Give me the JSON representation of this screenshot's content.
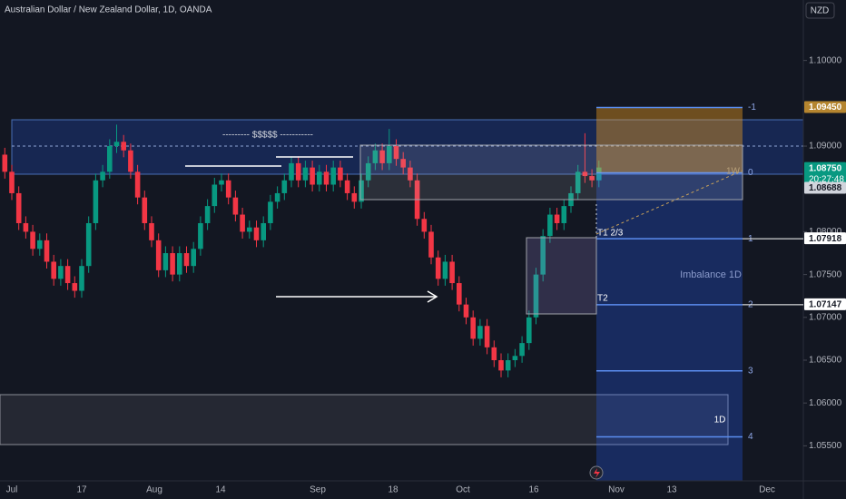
{
  "chart_data": {
    "type": "candlestick",
    "title": "Australian Dollar / New Zealand Dollar, 1D, OANDA",
    "currency": "NZD",
    "up_color": "#089981",
    "down_color": "#f23645",
    "x_labels": [
      "Jul",
      "17",
      "Aug",
      "14",
      "Sep",
      "18",
      "Oct",
      "16",
      "Nov",
      "13",
      "Dec"
    ],
    "open": [
      1.089,
      1.087,
      1.0845,
      1.081,
      1.08,
      1.078,
      1.079,
      1.0765,
      1.0745,
      1.076,
      1.074,
      1.0731,
      1.076,
      1.081,
      1.086,
      1.087,
      1.09,
      1.0905,
      1.0895,
      1.087,
      1.084,
      1.081,
      1.079,
      1.0755,
      1.0775,
      1.075,
      1.0775,
      1.076,
      1.078,
      1.081,
      1.083,
      1.0855,
      1.086,
      1.084,
      1.082,
      1.08,
      1.0805,
      1.079,
      1.081,
      1.0835,
      1.0845,
      1.086,
      1.088,
      1.086,
      1.0875,
      1.0855,
      1.087,
      1.0855,
      1.0875,
      1.086,
      1.0845,
      1.0835,
      1.086,
      1.088,
      1.0895,
      1.088,
      1.09,
      1.0885,
      1.0875,
      1.086,
      1.0815,
      1.08,
      1.077,
      1.0745,
      1.0765,
      1.074,
      1.0715,
      1.07,
      1.0675,
      1.069,
      1.0665,
      1.065,
      1.0638,
      1.065,
      1.0655,
      1.067,
      1.07,
      1.075,
      1.0795,
      1.082,
      1.081,
      1.083,
      1.0845,
      1.087,
      1.0865,
      1.086
    ],
    "high": [
      1.0898,
      1.0878,
      1.0853,
      1.0818,
      1.0808,
      1.0798,
      1.0798,
      1.0773,
      1.0768,
      1.0768,
      1.0748,
      1.0768,
      1.0818,
      1.0868,
      1.0878,
      1.0908,
      1.0925,
      1.0913,
      1.0903,
      1.0878,
      1.0848,
      1.0818,
      1.0798,
      1.0783,
      1.0783,
      1.0783,
      1.0783,
      1.0788,
      1.0818,
      1.0838,
      1.0863,
      1.0868,
      1.0868,
      1.0848,
      1.0828,
      1.0813,
      1.0813,
      1.0818,
      1.0843,
      1.0853,
      1.0868,
      1.0888,
      1.0888,
      1.0883,
      1.0883,
      1.0878,
      1.0878,
      1.0883,
      1.0883,
      1.0868,
      1.0853,
      1.0868,
      1.0888,
      1.0903,
      1.0903,
      1.092,
      1.0908,
      1.0893,
      1.0883,
      1.0868,
      1.0823,
      1.0808,
      1.0778,
      1.0773,
      1.0773,
      1.0748,
      1.0723,
      1.0708,
      1.0698,
      1.0698,
      1.0673,
      1.0658,
      1.0658,
      1.0663,
      1.0678,
      1.0708,
      1.0758,
      1.0803,
      1.0828,
      1.0828,
      1.0838,
      1.0853,
      1.0878,
      1.0915,
      1.0873,
      1.0883
    ],
    "low": [
      1.0862,
      1.0837,
      1.0802,
      1.0792,
      1.0772,
      1.0772,
      1.0757,
      1.0737,
      1.0737,
      1.0732,
      1.0723,
      1.0723,
      1.0752,
      1.0802,
      1.0852,
      1.0862,
      1.0892,
      1.0887,
      1.0862,
      1.0832,
      1.0802,
      1.0782,
      1.0747,
      1.0747,
      1.0742,
      1.0742,
      1.0752,
      1.0752,
      1.0772,
      1.0802,
      1.0822,
      1.0847,
      1.0832,
      1.0812,
      1.0792,
      1.0792,
      1.0782,
      1.0782,
      1.0802,
      1.0827,
      1.0837,
      1.0852,
      1.0852,
      1.0852,
      1.0847,
      1.0847,
      1.0847,
      1.0847,
      1.0852,
      1.0837,
      1.0827,
      1.0827,
      1.0852,
      1.0872,
      1.0872,
      1.0872,
      1.0877,
      1.0867,
      1.0852,
      1.0807,
      1.0792,
      1.0762,
      1.0737,
      1.0737,
      1.0732,
      1.0707,
      1.0692,
      1.0667,
      1.0667,
      1.0657,
      1.0642,
      1.063,
      1.063,
      1.0642,
      1.0647,
      1.0662,
      1.0692,
      1.0742,
      1.0787,
      1.0802,
      1.0802,
      1.0822,
      1.0837,
      1.0857,
      1.0852,
      1.0852
    ],
    "close": [
      1.087,
      1.0845,
      1.081,
      1.08,
      1.078,
      1.079,
      1.0765,
      1.0745,
      1.076,
      1.074,
      1.0731,
      1.076,
      1.081,
      1.086,
      1.087,
      1.09,
      1.0905,
      1.0895,
      1.087,
      1.084,
      1.081,
      1.079,
      1.0755,
      1.0775,
      1.075,
      1.0775,
      1.076,
      1.078,
      1.081,
      1.083,
      1.0855,
      1.086,
      1.084,
      1.082,
      1.08,
      1.0805,
      1.079,
      1.081,
      1.0835,
      1.0845,
      1.086,
      1.088,
      1.086,
      1.0875,
      1.0855,
      1.087,
      1.0855,
      1.0875,
      1.086,
      1.0845,
      1.0835,
      1.086,
      1.088,
      1.0895,
      1.088,
      1.09,
      1.0885,
      1.0875,
      1.086,
      1.0815,
      1.08,
      1.077,
      1.0745,
      1.0765,
      1.074,
      1.0715,
      1.07,
      1.0675,
      1.069,
      1.0665,
      1.065,
      1.0638,
      1.065,
      1.0655,
      1.067,
      1.07,
      1.075,
      1.0795,
      1.082,
      1.081,
      1.083,
      1.0845,
      1.087,
      1.0865,
      1.086,
      1.0875
    ],
    "ylim": [
      1.05091,
      1.10706
    ],
    "yticks": [
      {
        "value": 1.1,
        "label": "1.10000"
      },
      {
        "value": 1.09,
        "label": "1.09000"
      },
      {
        "value": 1.08,
        "label": "1.08000"
      },
      {
        "value": 1.075,
        "label": "1.07500"
      },
      {
        "value": 1.07,
        "label": "1.07000"
      },
      {
        "value": 1.065,
        "label": "1.06500"
      },
      {
        "value": 1.06,
        "label": "1.06000"
      },
      {
        "value": 1.055,
        "label": "1.05500"
      }
    ],
    "fib_levels": [
      {
        "label": "-1",
        "value": 1.0945
      },
      {
        "label": "0",
        "value": 1.08688
      },
      {
        "label": "1",
        "value": 1.07918
      },
      {
        "label": "2",
        "value": 1.07147
      },
      {
        "label": "3",
        "value": 1.06376
      },
      {
        "label": "4",
        "value": 1.05605
      }
    ],
    "price_labels": [
      {
        "value": 1.0945,
        "label": "1.09450",
        "color": "#b5852f"
      },
      {
        "value": 1.0875,
        "label": "1.08750",
        "sublabel": "20:27:48",
        "color": "#089981"
      },
      {
        "value": 1.08688,
        "label": "1.08688",
        "color": "#d1d4dc"
      },
      {
        "value": 1.07918,
        "label": "1.07918",
        "color": "#ffffff"
      },
      {
        "value": 1.07147,
        "label": "1.07147",
        "color": "#ffffff"
      }
    ],
    "annotations": {
      "liquidity": "--------- $$$$$ -----------",
      "weekly": "1W",
      "t1": "T1 2/3",
      "t2": "T2",
      "imbalance": "Imbalance 1D",
      "daily": "1D"
    }
  }
}
